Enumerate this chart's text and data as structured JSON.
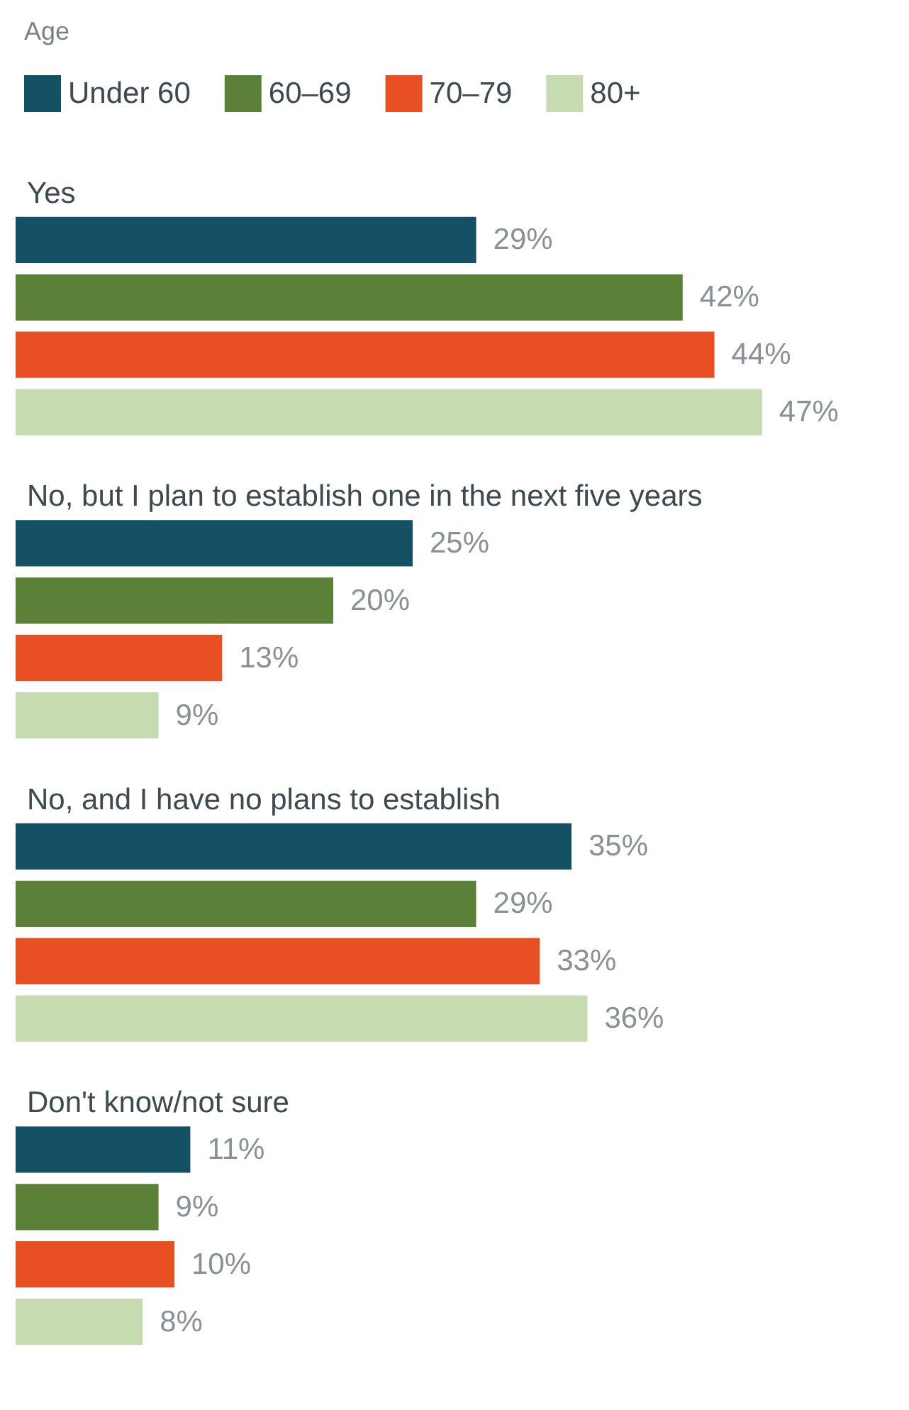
{
  "chart_data": {
    "type": "bar",
    "orientation": "horizontal",
    "legend_title": "Age",
    "legend": "top left",
    "categories": [
      "Yes",
      "No, but I plan to establish one in the next five years",
      "No, and I have no plans to establish",
      "Don't know/not sure"
    ],
    "series": [
      {
        "name": "Under 60",
        "color": "#155164",
        "values": [
          29,
          25,
          35,
          11
        ],
        "value_labels": [
          "29%",
          "25%",
          "35%",
          "11%"
        ]
      },
      {
        "name": "60–69",
        "color": "#5a8137",
        "values": [
          42,
          20,
          29,
          9
        ],
        "value_labels": [
          "42%",
          "20%",
          "29%",
          "9%"
        ]
      },
      {
        "name": "70–79",
        "color": "#e84f23",
        "values": [
          44,
          13,
          33,
          10
        ],
        "value_labels": [
          "44%",
          "13%",
          "33%",
          "10%"
        ]
      },
      {
        "name": "80+",
        "color": "#c7dbb1",
        "values": [
          47,
          9,
          36,
          8
        ],
        "value_labels": [
          "47%",
          "9%",
          "36%",
          "8%"
        ]
      }
    ]
  }
}
